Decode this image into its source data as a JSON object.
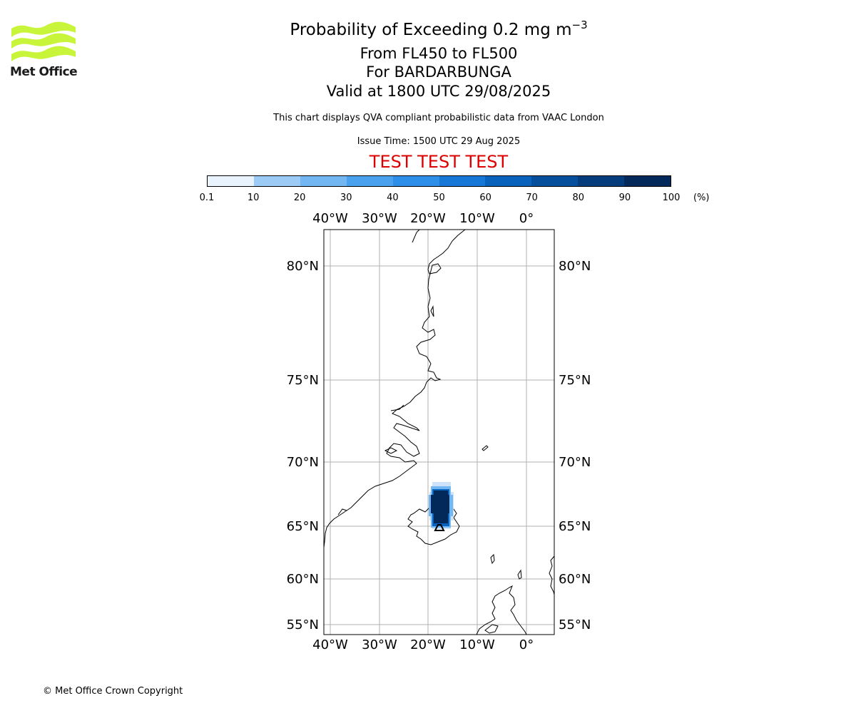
{
  "logo": {
    "text": "Met Office",
    "color": "#c8f53a"
  },
  "header": {
    "title": "Probability of Exceeding 0.2 mg m",
    "title_superscript": "−3",
    "flight_levels": "From FL450 to FL500",
    "volcano": "For BARDARBUNGA",
    "valid": "Valid at 1800 UTC 29/08/2025",
    "description": "This chart displays QVA compliant probabilistic data from VAAC London",
    "issue_time": "Issue Time: 1500 UTC 29 Aug 2025",
    "test_banner": "TEST TEST TEST",
    "test_color": "#dd0000"
  },
  "colorbar": {
    "ticks": [
      "0.1",
      "10",
      "20",
      "30",
      "40",
      "50",
      "60",
      "70",
      "80",
      "90",
      "100"
    ],
    "unit": "(%)",
    "colors": [
      "#e9f3fd",
      "#c6e0f8",
      "#9ccbf5",
      "#72b6f2",
      "#4aa2ee",
      "#2e8fe8",
      "#1677d6",
      "#0963bd",
      "#064f9c",
      "#053d7c",
      "#03285a"
    ]
  },
  "map": {
    "lon_labels": [
      "40°W",
      "30°W",
      "20°W",
      "10°W",
      "0°"
    ],
    "lat_labels": [
      "80°N",
      "75°N",
      "70°N",
      "65°N",
      "60°N",
      "55°N"
    ],
    "ash_colors": {
      "dark": "#03285a",
      "mid": "#0963bd",
      "light": "#72b6f2",
      "pale": "#c6e0f8"
    }
  },
  "footer": {
    "copyright": "© Met Office Crown Copyright"
  }
}
